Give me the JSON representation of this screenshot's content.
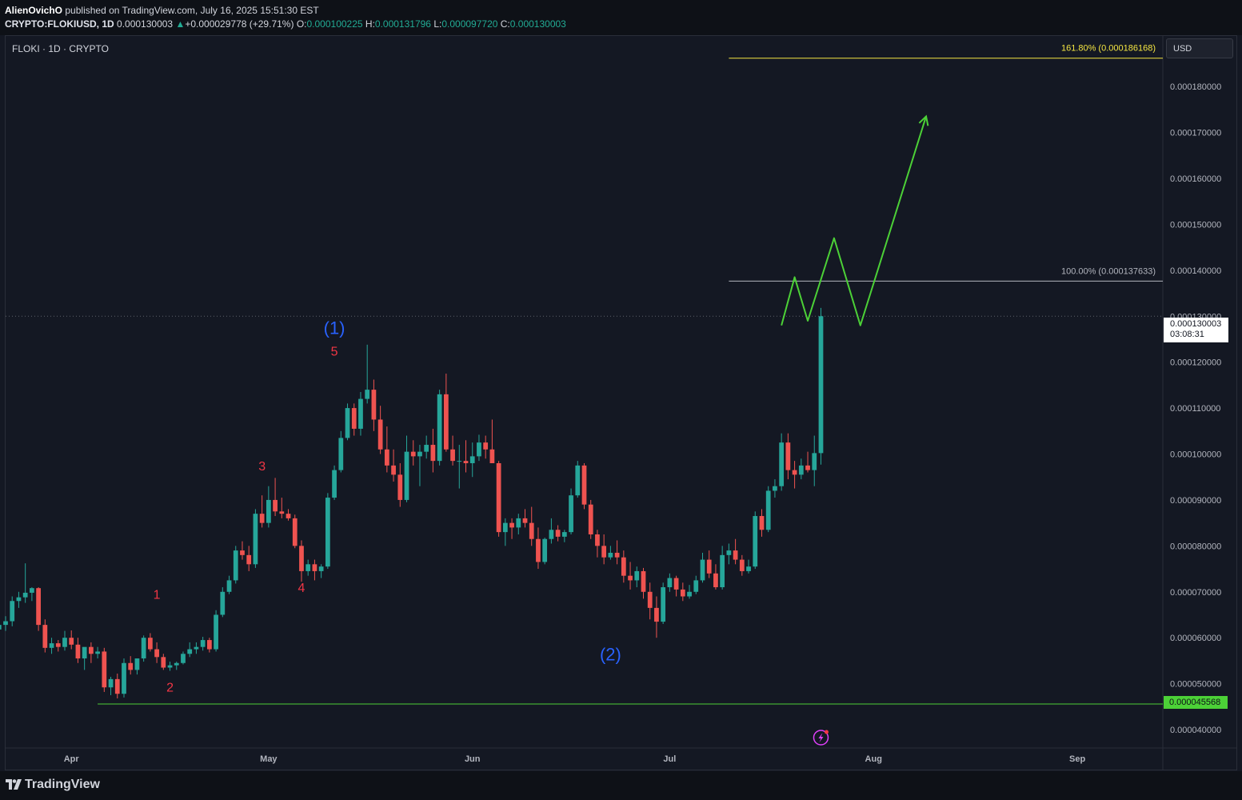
{
  "header": {
    "author": "AlienOvichO",
    "published_text": "published on TradingView.com, July 16, 2025 15:51:30 EST",
    "symbol_interval": "CRYPTO:FLOKIUSD, 1D",
    "last_price": "0.000130003",
    "change_icon": "up-arrow-icon",
    "change": "+0.000029778 (+29.71%)",
    "open_label": "O:",
    "open": "0.000100225",
    "high_label": "H:",
    "high": "0.000131796",
    "low_label": "L:",
    "low": "0.000097720",
    "close_label": "C:",
    "close": "0.000130003"
  },
  "legend": {
    "title": "FLOKI · 1D · CRYPTO"
  },
  "currency_button": "USD",
  "footer": {
    "brand": "TradingView"
  },
  "price_scale": {
    "current_price": "0.000130003",
    "countdown": "03:08:31",
    "support_price": "0.000045568"
  },
  "colors": {
    "up": "#26a69a",
    "down": "#ef5350",
    "fib": "#f5e642",
    "fib100": "#b2b5be",
    "support": "#4cd137",
    "projection": "#4cd137",
    "wave_major": "#2962ff",
    "wave_minor": "#f23645",
    "background": "#141823"
  },
  "chart_data": {
    "type": "candlestick",
    "title": "FLOKI · 1D · CRYPTO",
    "y_axis": {
      "ticks": [
        4e-05,
        5e-05,
        6e-05,
        7e-05,
        8e-05,
        9e-05,
        0.0001,
        0.00011,
        0.00012,
        0.00013,
        0.00014,
        0.00015,
        0.00016,
        0.00017,
        0.00018
      ],
      "tick_labels": [
        "0.000040000",
        "0.000050000",
        "0.000060000",
        "0.000070000",
        "0.000080000",
        "0.000090000",
        "0.000100000",
        "0.000110000",
        "0.000120000",
        "0.000130000",
        "0.000140000",
        "0.000150000",
        "0.000160000",
        "0.000170000",
        "0.000180000"
      ],
      "ylim": [
        3.6e-05,
        0.000191
      ]
    },
    "x_axis": {
      "labels": [
        "Apr",
        "May",
        "Jun",
        "Jul",
        "Aug",
        "Sep"
      ],
      "label_dates": [
        "2025-04-01",
        "2025-05-01",
        "2025-06-01",
        "2025-07-01",
        "2025-08-01",
        "2025-09-01"
      ],
      "xlim": [
        "2025-03-22",
        "2025-09-14"
      ]
    },
    "first_candle_date": "2025-03-21",
    "candles": [
      [
        6.18e-05,
        6.45e-05,
        6.11e-05,
        6.28e-05
      ],
      [
        6.28e-05,
        6.47e-05,
        6.15e-05,
        6.36e-05
      ],
      [
        6.36e-05,
        6.9e-05,
        6.25e-05,
        6.8e-05
      ],
      [
        6.8e-05,
        7e-05,
        6.65e-05,
        6.88e-05
      ],
      [
        6.88e-05,
        7.62e-05,
        6.76e-05,
        6.98e-05
      ],
      [
        6.98e-05,
        7.1e-05,
        6.8e-05,
        7.08e-05
      ],
      [
        7.08e-05,
        7.1e-05,
        6.15e-05,
        6.28e-05
      ],
      [
        6.28e-05,
        6.4e-05,
        5.68e-05,
        5.78e-05
      ],
      [
        5.78e-05,
        6e-05,
        5.65e-05,
        5.88e-05
      ],
      [
        5.88e-05,
        5.95e-05,
        5.7e-05,
        5.8e-05
      ],
      [
        5.8e-05,
        6.15e-05,
        5.72e-05,
        6e-05
      ],
      [
        6e-05,
        6.16e-05,
        5.75e-05,
        5.85e-05
      ],
      [
        5.85e-05,
        6e-05,
        5.45e-05,
        5.55e-05
      ],
      [
        5.55e-05,
        5.7e-05,
        5.3e-05,
        5.8e-05
      ],
      [
        5.8e-05,
        5.9e-05,
        5.45e-05,
        5.65e-05
      ],
      [
        5.65e-05,
        5.8e-05,
        5.55e-05,
        5.7e-05
      ],
      [
        5.7e-05,
        5.78e-05,
        4.82e-05,
        4.92e-05
      ],
      [
        4.92e-05,
        5.15e-05,
        4.75e-05,
        5.1e-05
      ],
      [
        5.1e-05,
        5.22e-05,
        4.68e-05,
        4.78e-05
      ],
      [
        4.78e-05,
        5.55e-05,
        4.7e-05,
        5.45e-05
      ],
      [
        5.45e-05,
        5.6e-05,
        5.2e-05,
        5.3e-05
      ],
      [
        5.3e-05,
        5.55e-05,
        5.2e-05,
        5.55e-05
      ],
      [
        5.55e-05,
        6.05e-05,
        5.48e-05,
        6e-05
      ],
      [
        6e-05,
        6.1e-05,
        5.7e-05,
        5.75e-05
      ],
      [
        5.75e-05,
        5.9e-05,
        5.45e-05,
        5.58e-05
      ],
      [
        5.58e-05,
        5.65e-05,
        5.3e-05,
        5.35e-05
      ],
      [
        5.35e-05,
        5.48e-05,
        5.28e-05,
        5.4e-05
      ],
      [
        5.4e-05,
        5.48e-05,
        5.3e-05,
        5.45e-05
      ],
      [
        5.45e-05,
        5.7e-05,
        5.42e-05,
        5.65e-05
      ],
      [
        5.65e-05,
        5.9e-05,
        5.58e-05,
        5.75e-05
      ],
      [
        5.75e-05,
        5.9e-05,
        5.65e-05,
        5.8e-05
      ],
      [
        5.8e-05,
        6.02e-05,
        5.72e-05,
        5.95e-05
      ],
      [
        5.95e-05,
        6e-05,
        5.68e-05,
        5.75e-05
      ],
      [
        5.75e-05,
        6.6e-05,
        5.7e-05,
        6.5e-05
      ],
      [
        6.5e-05,
        7.1e-05,
        6.45e-05,
        7e-05
      ],
      [
        7e-05,
        7.35e-05,
        6.95e-05,
        7.25e-05
      ],
      [
        7.25e-05,
        8e-05,
        7.18e-05,
        7.9e-05
      ],
      [
        7.9e-05,
        8.1e-05,
        7.7e-05,
        7.8e-05
      ],
      [
        7.8e-05,
        8e-05,
        7.45e-05,
        7.6e-05
      ],
      [
        7.6e-05,
        8.8e-05,
        7.52e-05,
        8.7e-05
      ],
      [
        8.7e-05,
        9.1e-05,
        8.4e-05,
        8.5e-05
      ],
      [
        8.5e-05,
        9.3e-05,
        8.4e-05,
        9e-05
      ],
      [
        9e-05,
        9.48e-05,
        8.65e-05,
        8.75e-05
      ],
      [
        8.75e-05,
        9.05e-05,
        8.6e-05,
        8.7e-05
      ],
      [
        8.7e-05,
        8.8e-05,
        8.55e-05,
        8.6e-05
      ],
      [
        8.6e-05,
        8.68e-05,
        7.95e-05,
        8e-05
      ],
      [
        8e-05,
        8.12e-05,
        7.22e-05,
        7.45e-05
      ],
      [
        7.45e-05,
        7.7e-05,
        7.35e-05,
        7.6e-05
      ],
      [
        7.6e-05,
        7.7e-05,
        7.25e-05,
        7.45e-05
      ],
      [
        7.45e-05,
        7.6e-05,
        7.3e-05,
        7.55e-05
      ],
      [
        7.55e-05,
        9.15e-05,
        7.5e-05,
        9.05e-05
      ],
      [
        9.05e-05,
        9.75e-05,
        9e-05,
        9.65e-05
      ],
      [
        9.65e-05,
        0.000105,
        9.6e-05,
        0.0001035
      ],
      [
        0.0001035,
        0.000111,
        0.000103,
        0.00011
      ],
      [
        0.00011,
        0.000111,
        0.000104,
        0.0001055
      ],
      [
        0.0001055,
        0.0001135,
        0.000104,
        0.000112
      ],
      [
        0.000112,
        0.0001238,
        0.000111,
        0.000114
      ],
      [
        0.000114,
        0.0001162,
        0.000105,
        0.0001075
      ],
      [
        0.0001075,
        0.0001105,
        0.0001,
        0.000101
      ],
      [
        0.000101,
        0.000106,
        9.6e-05,
        9.75e-05
      ],
      [
        9.75e-05,
        0.000101,
        9.4e-05,
        9.55e-05
      ],
      [
        9.55e-05,
        9.8e-05,
        8.85e-05,
        9e-05
      ],
      [
        9e-05,
        0.000104,
        8.95e-05,
        0.0001005
      ],
      [
        0.0001005,
        0.000103,
        9.75e-05,
        9.95e-05
      ],
      [
        9.95e-05,
        0.000102,
        9.3e-05,
        0.0001005
      ],
      [
        0.0001005,
        0.000104,
        9.9e-05,
        0.000102
      ],
      [
        0.000102,
        0.0001055,
        9.6e-05,
        9.85e-05
      ],
      [
        9.85e-05,
        0.000114,
        9.75e-05,
        0.000113
      ],
      [
        0.000113,
        0.0001175,
        0.0001005,
        0.000101
      ],
      [
        0.000101,
        0.000104,
        9.75e-05,
        9.85e-05
      ],
      [
        9.85e-05,
        0.000102,
        9.25e-05,
        9.85e-05
      ],
      [
        9.85e-05,
        0.000103,
        9.6e-05,
        9.8e-05
      ],
      [
        9.8e-05,
        0.0001025,
        9.5e-05,
        9.95e-05
      ],
      [
        9.95e-05,
        0.0001042,
        9.85e-05,
        0.0001025
      ],
      [
        0.0001025,
        0.000104,
        9.9e-05,
        0.000101
      ],
      [
        0.000101,
        0.0001075,
        9.95e-05,
        9.8e-05
      ],
      [
        9.8e-05,
        9.85e-05,
        8.2e-05,
        8.3e-05
      ],
      [
        8.3e-05,
        8.6e-05,
        8e-05,
        8.5e-05
      ],
      [
        8.5e-05,
        8.6e-05,
        8.15e-05,
        8.4e-05
      ],
      [
        8.4e-05,
        8.7e-05,
        8.25e-05,
        8.6e-05
      ],
      [
        8.6e-05,
        8.8e-05,
        8.4e-05,
        8.5e-05
      ],
      [
        8.5e-05,
        8.85e-05,
        8e-05,
        8.15e-05
      ],
      [
        8.15e-05,
        8.4e-05,
        7.5e-05,
        7.65e-05
      ],
      [
        7.65e-05,
        8.18e-05,
        7.6e-05,
        8.15e-05
      ],
      [
        8.15e-05,
        8.6e-05,
        8.05e-05,
        8.35e-05
      ],
      [
        8.35e-05,
        8.45e-05,
        8.1e-05,
        8.2e-05
      ],
      [
        8.2e-05,
        8.35e-05,
        8.08e-05,
        8.3e-05
      ],
      [
        8.3e-05,
        9.25e-05,
        8.25e-05,
        9.1e-05
      ],
      [
        9.1e-05,
        9.85e-05,
        9.05e-05,
        9.75e-05
      ],
      [
        9.75e-05,
        9.8e-05,
        8.8e-05,
        8.9e-05
      ],
      [
        8.9e-05,
        9e-05,
        8.15e-05,
        8.25e-05
      ],
      [
        8.25e-05,
        8.35e-05,
        7.75e-05,
        8e-05
      ],
      [
        8e-05,
        8.25e-05,
        7.6e-05,
        7.75e-05
      ],
      [
        7.75e-05,
        8e-05,
        7.7e-05,
        7.85e-05
      ],
      [
        7.85e-05,
        8.12e-05,
        7.6e-05,
        7.75e-05
      ],
      [
        7.75e-05,
        7.9e-05,
        7.2e-05,
        7.35e-05
      ],
      [
        7.35e-05,
        7.65e-05,
        7.05e-05,
        7.25e-05
      ],
      [
        7.25e-05,
        7.55e-05,
        7.1e-05,
        7.45e-05
      ],
      [
        7.45e-05,
        7.52e-05,
        6.85e-05,
        7e-05
      ],
      [
        7e-05,
        7.2e-05,
        6.4e-05,
        6.65e-05
      ],
      [
        6.65e-05,
        6.9e-05,
        6e-05,
        6.35e-05
      ],
      [
        6.35e-05,
        7.2e-05,
        6.3e-05,
        7.1e-05
      ],
      [
        7.1e-05,
        7.4e-05,
        7e-05,
        7.3e-05
      ],
      [
        7.3e-05,
        7.35e-05,
        6.9e-05,
        7.05e-05
      ],
      [
        7.05e-05,
        7.2e-05,
        6.8e-05,
        6.9e-05
      ],
      [
        6.9e-05,
        7.15e-05,
        6.85e-05,
        7e-05
      ],
      [
        7e-05,
        7.35e-05,
        6.95e-05,
        7.25e-05
      ],
      [
        7.25e-05,
        7.85e-05,
        7.2e-05,
        7.7e-05
      ],
      [
        7.7e-05,
        7.9e-05,
        7.3e-05,
        7.4e-05
      ],
      [
        7.4e-05,
        7.6e-05,
        7.05e-05,
        7.1e-05
      ],
      [
        7.1e-05,
        8e-05,
        7.05e-05,
        7.8e-05
      ],
      [
        7.8e-05,
        8.05e-05,
        7.6e-05,
        7.9e-05
      ],
      [
        7.9e-05,
        8.15e-05,
        7.6e-05,
        7.7e-05
      ],
      [
        7.7e-05,
        7.8e-05,
        7.35e-05,
        7.45e-05
      ],
      [
        7.45e-05,
        7.7e-05,
        7.4e-05,
        7.55e-05
      ],
      [
        7.55e-05,
        8.75e-05,
        7.5e-05,
        8.65e-05
      ],
      [
        8.65e-05,
        8.8e-05,
        8.2e-05,
        8.35e-05
      ],
      [
        8.35e-05,
        9.3e-05,
        8.3e-05,
        9.2e-05
      ],
      [
        9.2e-05,
        9.45e-05,
        9.05e-05,
        9.3e-05
      ],
      [
        9.3e-05,
        0.0001045,
        9.2e-05,
        0.0001025
      ],
      [
        0.0001025,
        0.0001045,
        9.45e-05,
        9.65e-05
      ],
      [
        9.65e-05,
        9.85e-05,
        9.25e-05,
        9.55e-05
      ],
      [
        9.55e-05,
        9.9e-05,
        9.45e-05,
        9.75e-05
      ],
      [
        9.75e-05,
        0.0001005,
        9.6e-05,
        9.65e-05
      ],
      [
        9.65e-05,
        0.000104,
        9.3e-05,
        0.0001002
      ],
      [
        0.0001002,
        0.0001318,
        9.77e-05,
        0.00013
      ]
    ],
    "annotations": {
      "major_waves": [
        {
          "label": "(1)",
          "date": "2025-05-11",
          "price": 0.0001275
        },
        {
          "label": "(2)",
          "date": "2025-06-22",
          "price": 5.65e-05
        }
      ],
      "minor_waves": [
        {
          "label": "1",
          "date": "2025-04-14",
          "price": 6.95e-05
        },
        {
          "label": "2",
          "date": "2025-04-16",
          "price": 4.93e-05
        },
        {
          "label": "3",
          "date": "2025-04-30",
          "price": 9.75e-05
        },
        {
          "label": "4",
          "date": "2025-05-06",
          "price": 7.1e-05
        },
        {
          "label": "5",
          "date": "2025-05-11",
          "price": 0.0001225
        }
      ],
      "fib_levels": [
        {
          "label": "161.80% (0.000186168)",
          "price": 0.000186168
        },
        {
          "label": "100.00% (0.000137633)",
          "price": 0.000137633
        }
      ],
      "fib_start_date": "2025-07-10",
      "support_price": 4.5568e-05,
      "support_start_date": "2025-04-05",
      "current_price": 0.000130003,
      "projection_path": [
        [
          "2025-07-18",
          0.000128
        ],
        [
          "2025-07-20",
          0.0001385
        ],
        [
          "2025-07-22",
          0.000129
        ],
        [
          "2025-07-26",
          0.000147
        ],
        [
          "2025-07-30",
          0.000128
        ],
        [
          "2025-08-09",
          0.0001735
        ]
      ]
    }
  }
}
